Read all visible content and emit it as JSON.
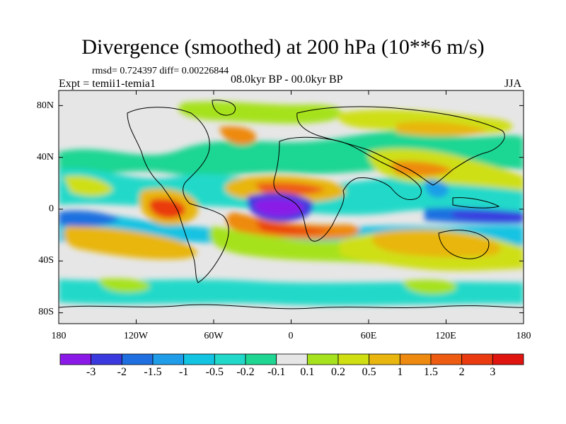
{
  "title": "Divergence (smoothed) at 200 hPa (10**6 m/s)",
  "stats_line": "rmsd= 0.724397 diff= 0.00226844",
  "experiment": "Expt = temii1-temia1",
  "period": "08.0kyr BP - 00.0kyr BP",
  "season": "JJA",
  "map": {
    "projection": "cylindrical equidistant",
    "lon_range": [
      -180,
      180
    ],
    "lat_range": [
      -90,
      90
    ],
    "y_ticks": [
      "80N",
      "40N",
      "0",
      "40S",
      "80S"
    ],
    "x_ticks": [
      "180",
      "120W",
      "60W",
      "0",
      "60E",
      "120E",
      "180"
    ]
  },
  "colorbar": {
    "labels": [
      "-3",
      "-2",
      "-1.5",
      "-1",
      "-0.5",
      "-0.2",
      "-0.1",
      "0.1",
      "0.2",
      "0.5",
      "1",
      "1.5",
      "2",
      "3"
    ],
    "colors": [
      "#8b1ae8",
      "#3a3adf",
      "#1f6fe0",
      "#1f9de8",
      "#12c3e2",
      "#22d9c9",
      "#1fd693",
      "#e6e6e6",
      "#a6e21e",
      "#cfdf12",
      "#e8b60e",
      "#ee8a10",
      "#ee5c12",
      "#ea3a10",
      "#e0150f"
    ]
  }
}
